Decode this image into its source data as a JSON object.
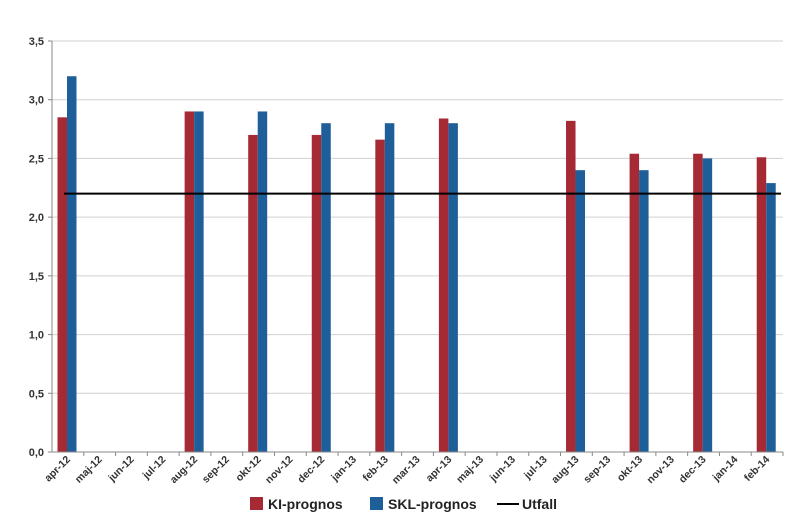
{
  "chart_data": {
    "type": "bar",
    "categories": [
      "apr-12",
      "maj-12",
      "jun-12",
      "jul-12",
      "aug-12",
      "sep-12",
      "okt-12",
      "nov-12",
      "dec-12",
      "jan-13",
      "feb-13",
      "mar-13",
      "apr-13",
      "maj-13",
      "jun-13",
      "jul-13",
      "aug-13",
      "sep-13",
      "okt-13",
      "nov-13",
      "dec-13",
      "jan-14",
      "feb-14"
    ],
    "series": [
      {
        "name": "KI-prognos",
        "color": "#a52a34",
        "values": [
          2.85,
          null,
          null,
          null,
          2.9,
          null,
          2.7,
          null,
          2.7,
          null,
          2.66,
          null,
          2.84,
          null,
          null,
          null,
          2.82,
          null,
          2.54,
          null,
          2.54,
          null,
          2.51
        ]
      },
      {
        "name": "SKL-prognos",
        "color": "#1f5f99",
        "values": [
          3.2,
          null,
          null,
          null,
          2.9,
          null,
          2.9,
          null,
          2.8,
          null,
          2.8,
          null,
          2.8,
          null,
          null,
          null,
          2.4,
          null,
          2.4,
          null,
          2.5,
          null,
          2.29
        ]
      }
    ],
    "line": {
      "name": "Utfall",
      "color": "#000000",
      "value": 2.2
    },
    "yticks": [
      "0,0",
      "0,5",
      "1,0",
      "1,5",
      "2,0",
      "2,5",
      "3,0",
      "3,5"
    ],
    "ylim": [
      0,
      3.5
    ],
    "title": "",
    "xlabel": "",
    "ylabel": "",
    "grid": true,
    "legend_position": "bottom"
  }
}
